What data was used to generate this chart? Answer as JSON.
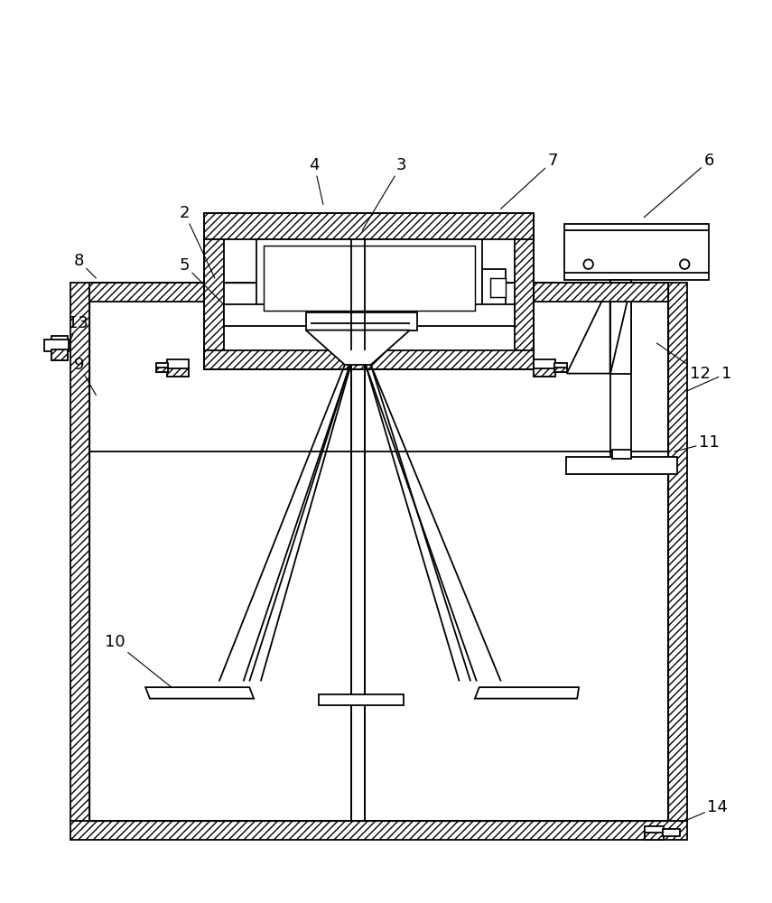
{
  "bg_color": "#ffffff",
  "lc": "#000000",
  "lw": 1.3,
  "annotations": {
    "1": {
      "lp": [
        820,
        590
      ],
      "ap": [
        775,
        570
      ]
    },
    "2": {
      "lp": [
        195,
        775
      ],
      "ap": [
        230,
        700
      ]
    },
    "3": {
      "lp": [
        445,
        830
      ],
      "ap": [
        400,
        755
      ]
    },
    "4": {
      "lp": [
        345,
        830
      ],
      "ap": [
        355,
        785
      ]
    },
    "5": {
      "lp": [
        195,
        715
      ],
      "ap": [
        240,
        670
      ]
    },
    "6": {
      "lp": [
        800,
        835
      ],
      "ap": [
        725,
        770
      ]
    },
    "7": {
      "lp": [
        620,
        835
      ],
      "ap": [
        560,
        780
      ]
    },
    "8": {
      "lp": [
        73,
        720
      ],
      "ap": [
        93,
        700
      ]
    },
    "9": {
      "lp": [
        73,
        600
      ],
      "ap": [
        93,
        565
      ]
    },
    "10": {
      "lp": [
        115,
        280
      ],
      "ap": [
        190,
        220
      ]
    },
    "11": {
      "lp": [
        800,
        510
      ],
      "ap": [
        760,
        500
      ]
    },
    "12": {
      "lp": [
        790,
        590
      ],
      "ap": [
        740,
        625
      ]
    },
    "13": {
      "lp": [
        72,
        648
      ],
      "ap": [
        62,
        625
      ]
    },
    "14": {
      "lp": [
        810,
        90
      ],
      "ap": [
        768,
        72
      ]
    }
  }
}
